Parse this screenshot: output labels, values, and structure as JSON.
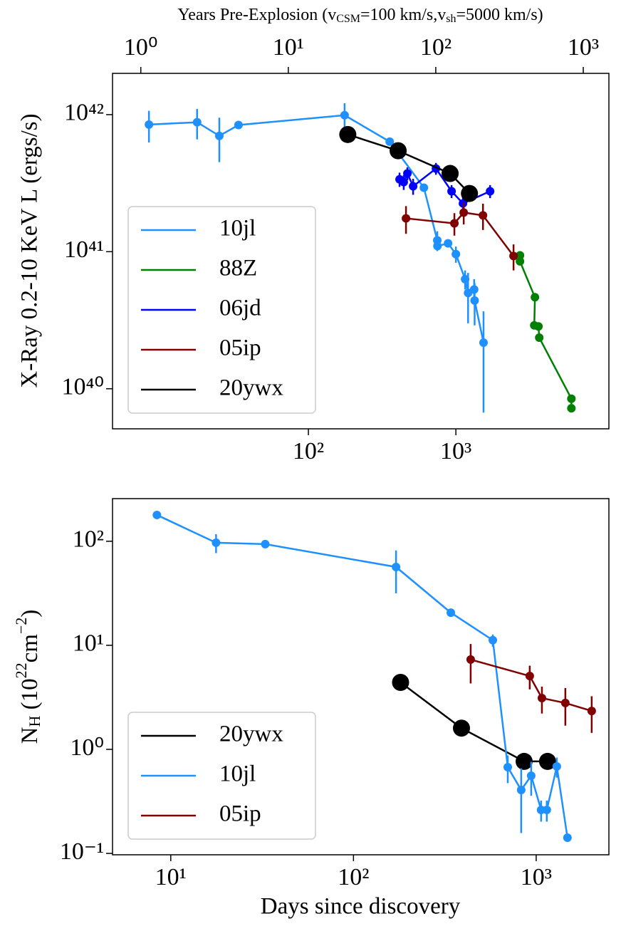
{
  "chart_data": [
    {
      "type": "line",
      "xscale": "log",
      "yscale": "log",
      "legend": "lower left",
      "ylabel": "X-Ray 0.2-10 KeV L (ergs/s)",
      "x2label": [
        "Years Pre-Explosion (v",
        "CSM",
        "=100 km/s,v",
        "sh",
        "=5000 km/s)"
      ],
      "xlim": [
        4.7,
        10900
      ],
      "xticks": [
        {
          "value": 100,
          "label": "10²"
        },
        {
          "value": 1000,
          "label": "10³"
        }
      ],
      "x2lim": [
        0.643,
        1492
      ],
      "x2ticks": [
        {
          "value": 1,
          "label": "10⁰"
        },
        {
          "value": 10,
          "label": "10¹"
        },
        {
          "value": 100,
          "label": "10²"
        },
        {
          "value": 1000,
          "label": "10³"
        }
      ],
      "ylim": [
        5.1e+39,
        2e+42
      ],
      "yticks": [
        {
          "value": 1e+40,
          "label": "10⁴⁰"
        },
        {
          "value": 1e+41,
          "label": "10⁴¹"
        },
        {
          "value": 1e+42,
          "label": "10⁴²"
        }
      ],
      "series": [
        {
          "name": "10jl",
          "color": "#1e90ff",
          "marker_size": 6,
          "x": [
            8.3,
            17.6,
            24.9,
            33.6,
            176,
            356,
            607,
            748,
            750,
            885,
            1000,
            1155,
            1210,
            1330,
            1340,
            1540
          ],
          "values": [
            8.46e+41,
            8.8e+41,
            7e+41,
            8.4e+41,
            9.9e+41,
            6.35e+41,
            2.93e+41,
            1.21e+41,
            1.1e+41,
            1.15e+41,
            9.6e+40,
            6.3e+40,
            5e+40,
            5.3e+40,
            4.4e+40,
            2.17e+40
          ],
          "errors": [
            2.2e+41,
            2.2e+41,
            2.5e+41,
            null,
            2.2e+41,
            null,
            null,
            2e+40,
            null,
            null,
            1.3e+40,
            1e+40,
            2e+40,
            1e+40,
            1.5e+40,
            1.5e+40
          ]
        },
        {
          "name": "88Z",
          "color": "#008000",
          "marker_size": 6,
          "x": [
            2720,
            2720,
            3435,
            3400,
            3630,
            3675,
            6070,
            6070
          ],
          "values": [
            9.4e+40,
            8.5e+40,
            4.65e+40,
            2.9e+40,
            2.85e+40,
            2.36e+40,
            8.46e+39,
            7.2e+39
          ]
        },
        {
          "name": "06jd",
          "color": "#0000ff",
          "marker_size": 6,
          "x": [
            415,
            443,
            469,
            513,
            733,
            935,
            1117,
            1706
          ],
          "values": [
            3.37e+41,
            3.22e+41,
            3.72e+41,
            3e+41,
            4.04e+41,
            2.76e+41,
            2.25e+41,
            2.76e+41
          ],
          "errors": [
            4e+40,
            4e+40,
            4e+40,
            4e+40,
            4e+40,
            3e+40,
            3e+40,
            3e+40
          ]
        },
        {
          "name": "05ip",
          "color": "#800000",
          "marker_size": 6,
          "x": [
            459,
            977,
            1130,
            1527,
            2460
          ],
          "values": [
            1.75e+41,
            1.61e+41,
            1.93e+41,
            1.84e+41,
            9.3e+40
          ],
          "errors": [
            4e+40,
            3e+40,
            3.5e+40,
            4e+40,
            2e+40
          ]
        },
        {
          "name": "20ywx",
          "color": "#000000",
          "marker_size": 12,
          "x": [
            185,
            406,
            914,
            1236
          ],
          "values": [
            7.16e+41,
            5.45e+41,
            3.72e+41,
            2.66e+41
          ]
        }
      ]
    },
    {
      "type": "line",
      "xscale": "log",
      "yscale": "log",
      "legend": "lower left",
      "xlabel": "Days since discovery",
      "ylabel": [
        "N",
        "H",
        " (10",
        "22",
        "cm",
        "−2",
        ")"
      ],
      "xlim": [
        4.8,
        2500
      ],
      "xticks": [
        {
          "value": 10,
          "label": "10¹"
        },
        {
          "value": 100,
          "label": "10²"
        },
        {
          "value": 1000,
          "label": "10³"
        }
      ],
      "ylim": [
        0.097,
        257
      ],
      "yticks": [
        {
          "value": 0.1,
          "label": "10⁻¹"
        },
        {
          "value": 1,
          "label": "10⁰"
        },
        {
          "value": 10,
          "label": "10¹"
        },
        {
          "value": 100,
          "label": "10²"
        }
      ],
      "series": [
        {
          "name": "20ywx",
          "color": "#000000",
          "marker_size": 12,
          "x": [
            181,
            390,
            859,
            1154
          ],
          "values": [
            4.4,
            1.6,
            0.766,
            0.766
          ]
        },
        {
          "name": "10jl",
          "color": "#1e90ff",
          "marker_size": 6,
          "x": [
            8.4,
            17.7,
            32.9,
            171,
            341,
            579,
            699,
            828,
            939,
            1064,
            1143,
            1297,
            1483
          ],
          "values": [
            179,
            96.9,
            93.9,
            56.6,
            20.6,
            11.2,
            0.674,
            0.407,
            0.558,
            0.262,
            0.262,
            0.685,
            0.1416
          ],
          "errors": [
            null,
            20,
            null,
            25,
            null,
            1.5,
            0.2,
            0.25,
            0.2,
            0.06,
            0.06,
            0.15,
            null
          ]
        },
        {
          "name": "05ip",
          "color": "#800000",
          "marker_size": 6,
          "x": [
            438,
            922,
            1075,
            1444,
            2013
          ],
          "values": [
            7.3,
            5.07,
            3.11,
            2.79,
            2.34
          ],
          "errors": [
            3,
            1.3,
            0.9,
            1.1,
            0.9
          ]
        }
      ]
    }
  ]
}
